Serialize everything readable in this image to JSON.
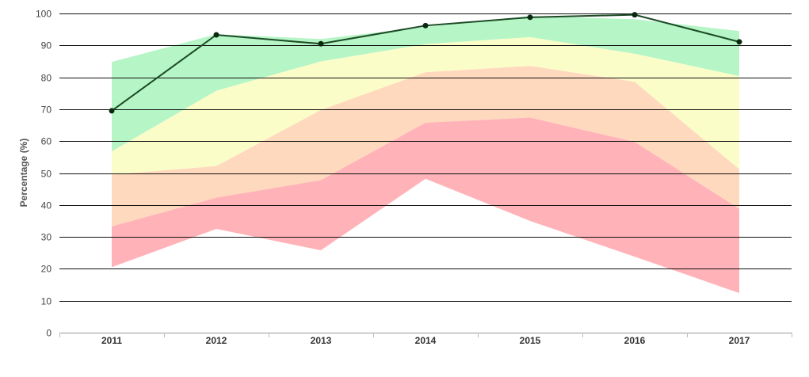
{
  "chart_data": {
    "type": "area",
    "categories": [
      "2011",
      "2012",
      "2013",
      "2014",
      "2015",
      "2016",
      "2017"
    ],
    "ylabel": "Percentage (%)",
    "ylim": [
      0,
      100
    ],
    "yticks": [
      0,
      10,
      20,
      30,
      40,
      50,
      60,
      70,
      80,
      90,
      100
    ],
    "grid": true,
    "bands": [
      {
        "color": "#ffb3b8",
        "lower": [
          20.5,
          32.5,
          25.8,
          48.2,
          35.0,
          23.8,
          12.4
        ],
        "upper": [
          33.3,
          42.3,
          47.8,
          65.8,
          67.4,
          59.8,
          38.8
        ]
      },
      {
        "color": "#ffd9bd",
        "lower": [
          33.3,
          42.3,
          47.8,
          65.8,
          67.4,
          59.8,
          38.8
        ],
        "upper": [
          49.5,
          52.2,
          69.8,
          81.6,
          83.6,
          78.6,
          51.2
        ]
      },
      {
        "color": "#fbfdc9",
        "lower": [
          49.5,
          52.2,
          69.8,
          81.6,
          83.6,
          78.6,
          51.2
        ],
        "upper": [
          56.8,
          75.8,
          85.0,
          90.4,
          92.6,
          87.4,
          80.4
        ]
      },
      {
        "color": "#b5f5c6",
        "lower": [
          56.8,
          75.8,
          85.0,
          90.4,
          92.6,
          87.4,
          80.4
        ],
        "upper": [
          84.8,
          93.5,
          92.0,
          95.8,
          99.2,
          98.2,
          94.5
        ]
      }
    ],
    "series": [
      {
        "color": "#1b4a24",
        "values": [
          69.5,
          93.3,
          90.5,
          96.2,
          98.8,
          99.6,
          91.1
        ]
      }
    ]
  }
}
